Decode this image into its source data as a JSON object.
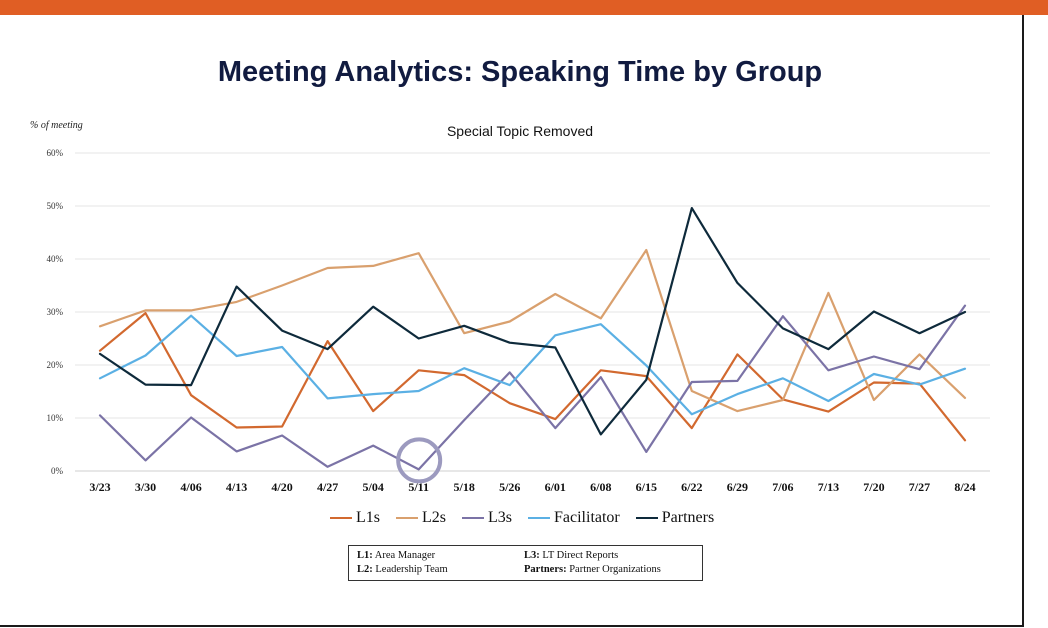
{
  "header": {
    "bar_color": "#E05E24"
  },
  "title": "Meeting Analytics: Speaking Time by Group",
  "chart_data": {
    "type": "line",
    "subtitle": "Special Topic Removed",
    "ylabel": "% of meeting",
    "ylim": [
      0,
      60
    ],
    "yticks": [
      0,
      10,
      20,
      30,
      40,
      50,
      60
    ],
    "ytick_labels": [
      "0%",
      "10%",
      "20%",
      "30%",
      "40%",
      "50%",
      "60%"
    ],
    "grid": true,
    "legend_position": "bottom",
    "categories": [
      "3/23",
      "3/30",
      "4/06",
      "4/13",
      "4/20",
      "4/27",
      "5/04",
      "5/11",
      "5/18",
      "5/26",
      "6/01",
      "6/08",
      "6/15",
      "6/22",
      "6/29",
      "7/06",
      "7/13",
      "7/20",
      "7/27",
      "8/24"
    ],
    "highlight_category": "5/11",
    "series": [
      {
        "name": "L1s",
        "color": "#D2692F",
        "values": [
          22.7,
          29.8,
          14.3,
          8.2,
          8.4,
          24.5,
          11.3,
          19.0,
          18.1,
          12.8,
          9.8,
          19.0,
          17.9,
          8.1,
          22.0,
          13.5,
          11.2,
          16.7,
          16.5,
          5.8
        ]
      },
      {
        "name": "L2s",
        "color": "#D9A06E",
        "values": [
          27.3,
          30.3,
          30.3,
          31.9,
          35.0,
          38.3,
          38.7,
          41.1,
          26.0,
          28.2,
          33.4,
          28.8,
          41.7,
          15.1,
          11.3,
          13.4,
          33.6,
          13.4,
          22.0,
          13.8
        ]
      },
      {
        "name": "L3s",
        "color": "#7B73A6",
        "values": [
          10.5,
          2.0,
          10.1,
          3.7,
          6.7,
          0.8,
          4.8,
          0.3,
          9.6,
          18.6,
          8.1,
          17.7,
          3.6,
          16.8,
          17.0,
          29.2,
          19.0,
          21.6,
          19.2,
          31.2
        ]
      },
      {
        "name": "Facilitator",
        "color": "#5BB0E4",
        "values": [
          17.5,
          21.8,
          29.3,
          21.7,
          23.4,
          13.7,
          14.5,
          15.1,
          19.4,
          16.2,
          25.6,
          27.7,
          19.9,
          10.7,
          14.5,
          17.5,
          13.2,
          18.3,
          16.3,
          19.3
        ]
      },
      {
        "name": "Partners",
        "color": "#0E2A3B",
        "values": [
          22.1,
          16.3,
          16.2,
          34.8,
          26.5,
          23.0,
          31.0,
          25.0,
          27.4,
          24.2,
          23.3,
          6.9,
          17.2,
          49.6,
          35.5,
          26.9,
          23.0,
          30.1,
          26.0,
          30.0
        ]
      }
    ]
  },
  "legend": [
    "L1s",
    "L2s",
    "L3s",
    "Facilitator",
    "Partners"
  ],
  "key": {
    "l1_term": "L1:",
    "l1_desc": "Area Manager",
    "l2_term": "L2:",
    "l2_desc": "Leadership Team",
    "l3_term": "L3:",
    "l3_desc": "LT Direct Reports",
    "partners_term": "Partners:",
    "partners_desc": "Partner Organizations"
  }
}
